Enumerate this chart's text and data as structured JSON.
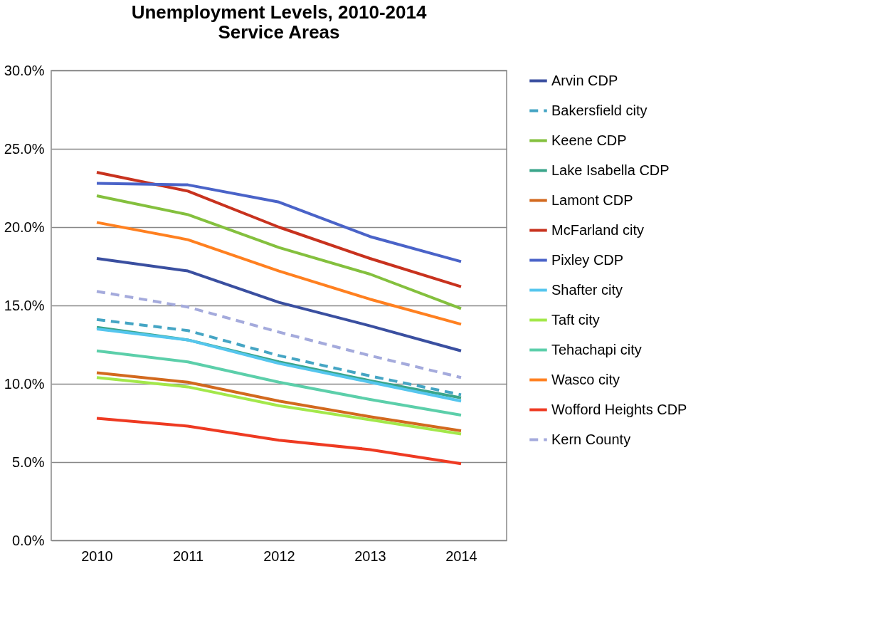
{
  "chart_data": {
    "type": "line",
    "title": [
      "Unemployment Levels, 2010-2014",
      "Service Areas"
    ],
    "categories": [
      "2010",
      "2011",
      "2012",
      "2013",
      "2014"
    ],
    "ylim": [
      0,
      30
    ],
    "yticks": [
      {
        "value": 0,
        "label": "0.0%"
      },
      {
        "value": 5,
        "label": "5.0%"
      },
      {
        "value": 10,
        "label": "10.0%"
      },
      {
        "value": 15,
        "label": "15.0%"
      },
      {
        "value": 20,
        "label": "20.0%"
      },
      {
        "value": 25,
        "label": "25.0%"
      },
      {
        "value": 30,
        "label": "30.0%"
      }
    ],
    "grid": "y",
    "legend": "right",
    "marker": "none",
    "line_style": "solid",
    "series": [
      {
        "name": "Arvin CDP",
        "color": "#3a4fa0",
        "values": [
          18.0,
          17.2,
          15.2,
          13.7,
          12.1
        ]
      },
      {
        "name": "Bakersfield city",
        "color": "#45a5c4",
        "line_style": "dashed",
        "values": [
          14.1,
          13.4,
          11.8,
          10.5,
          9.3
        ]
      },
      {
        "name": "Keene CDP",
        "color": "#84c03e",
        "values": [
          22.0,
          20.8,
          18.7,
          17.0,
          14.8
        ]
      },
      {
        "name": "Lake Isabella CDP",
        "color": "#3aa58a",
        "values": [
          13.6,
          12.8,
          11.4,
          10.2,
          9.1
        ]
      },
      {
        "name": "Lamont CDP",
        "color": "#d2691e",
        "values": [
          10.7,
          10.1,
          8.9,
          7.9,
          7.0
        ]
      },
      {
        "name": "McFarland city",
        "color": "#c8321e",
        "values": [
          23.5,
          22.3,
          20.0,
          18.0,
          16.2
        ]
      },
      {
        "name": "Pixley CDP",
        "color": "#4a63c8",
        "values": [
          22.8,
          22.7,
          21.6,
          19.4,
          17.8
        ]
      },
      {
        "name": "Shafter city",
        "color": "#55c6ee",
        "values": [
          13.5,
          12.8,
          11.3,
          10.1,
          8.9
        ]
      },
      {
        "name": "Taft city",
        "color": "#a3e84a",
        "values": [
          10.4,
          9.8,
          8.6,
          7.7,
          6.8
        ]
      },
      {
        "name": "Tehachapi city",
        "color": "#5ccfaa",
        "values": [
          12.1,
          11.4,
          10.1,
          9.0,
          8.0
        ]
      },
      {
        "name": "Wasco city",
        "color": "#ff8020",
        "values": [
          20.3,
          19.2,
          17.2,
          15.4,
          13.8
        ]
      },
      {
        "name": "Wofford Heights CDP",
        "color": "#ee3a22",
        "values": [
          7.8,
          7.3,
          6.4,
          5.8,
          4.9
        ]
      },
      {
        "name": "Kern County",
        "color": "#a4aadc",
        "line_style": "dashed",
        "values": [
          15.9,
          14.9,
          13.3,
          11.8,
          10.4
        ]
      }
    ]
  }
}
